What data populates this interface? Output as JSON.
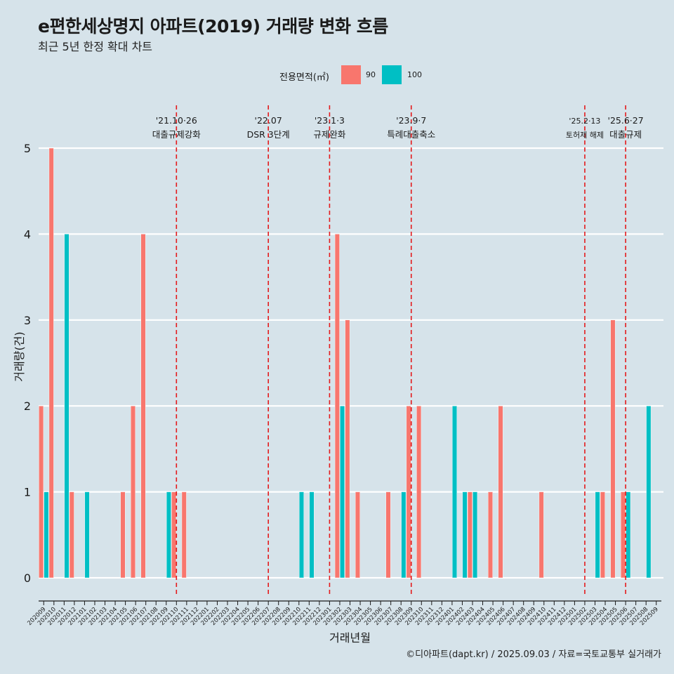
{
  "chart_data": {
    "type": "bar",
    "title": "e편한세상명지 아파트(2019) 거래량 변화 흐름",
    "subtitle": "최근 5년 한정 확대 차트",
    "xlabel": "거래년월",
    "ylabel": "거래량(건)",
    "ylim": [
      0,
      5
    ],
    "yticks": [
      0,
      1,
      2,
      3,
      4,
      5
    ],
    "grid": true,
    "legend": {
      "title": "전용면적(㎡)",
      "items": [
        "90",
        "100"
      ],
      "position": "top"
    },
    "colors": {
      "90": "#f8766d",
      "100": "#00bfc4",
      "event_line": "#e41a1c",
      "grid": "#ffffff",
      "background": "#d6e3ea"
    },
    "categories": [
      "202009",
      "202010",
      "202011",
      "202012",
      "202101",
      "202102",
      "202103",
      "202104",
      "202105",
      "202106",
      "202107",
      "202108",
      "202109",
      "202110",
      "202111",
      "202112",
      "202201",
      "202202",
      "202203",
      "202204",
      "202205",
      "202206",
      "202207",
      "202208",
      "202209",
      "202210",
      "202211",
      "202212",
      "202301",
      "202302",
      "202303",
      "202304",
      "202305",
      "202306",
      "202307",
      "202308",
      "202309",
      "202310",
      "202311",
      "202312",
      "202401",
      "202402",
      "202403",
      "202404",
      "202405",
      "202406",
      "202407",
      "202408",
      "202409",
      "202410",
      "202411",
      "202412",
      "202501",
      "202502",
      "202503",
      "202504",
      "202505",
      "202506",
      "202507",
      "202508",
      "202509"
    ],
    "series": [
      {
        "name": "90",
        "values": [
          2,
          5,
          0,
          1,
          0,
          0,
          0,
          0,
          1,
          2,
          4,
          0,
          0,
          1,
          1,
          0,
          0,
          0,
          0,
          0,
          0,
          0,
          0,
          0,
          0,
          0,
          0,
          0,
          0,
          4,
          3,
          1,
          0,
          0,
          1,
          0,
          2,
          2,
          0,
          0,
          0,
          0,
          1,
          0,
          1,
          2,
          0,
          0,
          0,
          1,
          0,
          0,
          0,
          0,
          0,
          1,
          3,
          1,
          0,
          0,
          0
        ]
      },
      {
        "name": "100",
        "values": [
          1,
          0,
          4,
          0,
          1,
          0,
          0,
          0,
          0,
          0,
          0,
          0,
          1,
          0,
          0,
          0,
          0,
          0,
          0,
          0,
          0,
          0,
          0,
          0,
          0,
          1,
          1,
          0,
          0,
          2,
          0,
          0,
          0,
          0,
          0,
          1,
          0,
          0,
          0,
          0,
          2,
          1,
          1,
          0,
          0,
          0,
          0,
          0,
          0,
          0,
          0,
          0,
          0,
          0,
          1,
          0,
          0,
          1,
          0,
          2,
          0
        ]
      }
    ],
    "events": [
      {
        "x": "202110",
        "date": "'21.10·26",
        "label": "대출규제강화"
      },
      {
        "x": "202207",
        "date": "'22.07",
        "label": "DSR 3단계"
      },
      {
        "x": "202301",
        "date": "'23.1·3",
        "label": "규제완화"
      },
      {
        "x": "202309",
        "date": "'23.9·7",
        "label": "특례대출축소"
      },
      {
        "x": "202502",
        "date": "'25.2·13",
        "label": "토허제 해제"
      },
      {
        "x": "202506",
        "date": "'25.6·27",
        "label": "대출규제"
      }
    ],
    "caption": "©디아파트(dapt.kr) / 2025.09.03 / 자료=국토교통부 실거래가"
  }
}
